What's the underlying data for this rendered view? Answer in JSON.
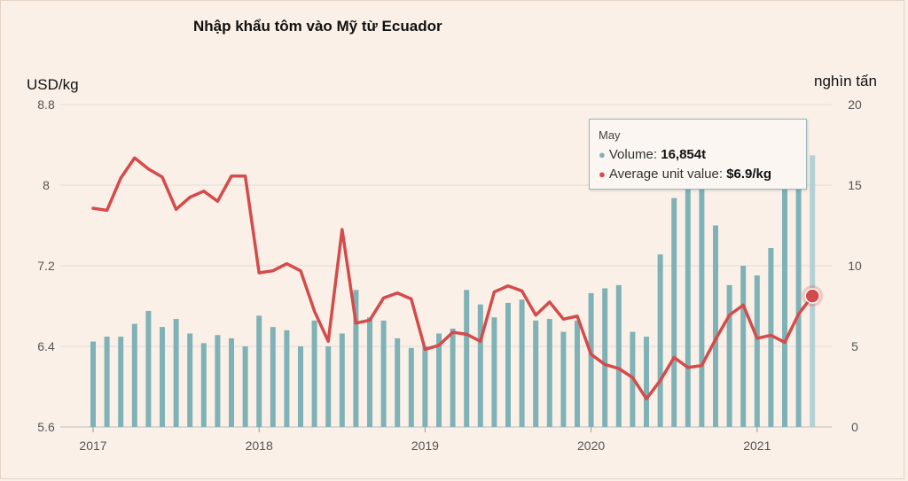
{
  "title": "Nhập khẩu tôm vào Mỹ từ Ecuador",
  "axis": {
    "left_title": "USD/kg",
    "right_title": "nghìn tấn"
  },
  "tooltip": {
    "month": "May",
    "volume_label": "Volume:",
    "volume_value": "16,854t",
    "price_label": "Average unit value:",
    "price_value": "$6.9/kg"
  },
  "colors": {
    "bar": "#7fb2b7",
    "bar_highlight": "#b3d1d4",
    "line": "#d44b4b",
    "grid": "#dddddd",
    "background": "#fbf0e7"
  },
  "chart_data": {
    "type": "bar",
    "x_ticks": [
      "2017",
      "2018",
      "2019",
      "2020",
      "2021"
    ],
    "left_axis": {
      "label": "USD/kg",
      "ylim": [
        5.6,
        8.8
      ],
      "ticks": [
        "5.6",
        "6.4",
        "7.2",
        "8",
        "8.8"
      ]
    },
    "right_axis": {
      "label": "nghìn tấn",
      "ylim": [
        0,
        20
      ],
      "ticks": [
        "0",
        "5",
        "10",
        "15",
        "20"
      ]
    },
    "grid": true,
    "categories": [
      "Jan 2017",
      "Feb 2017",
      "Mar 2017",
      "Apr 2017",
      "May 2017",
      "Jun 2017",
      "Jul 2017",
      "Aug 2017",
      "Sep 2017",
      "Oct 2017",
      "Nov 2017",
      "Dec 2017",
      "Jan 2018",
      "Feb 2018",
      "Mar 2018",
      "Apr 2018",
      "May 2018",
      "Jun 2018",
      "Jul 2018",
      "Aug 2018",
      "Sep 2018",
      "Oct 2018",
      "Nov 2018",
      "Dec 2018",
      "Jan 2019",
      "Feb 2019",
      "Mar 2019",
      "Apr 2019",
      "May 2019",
      "Jun 2019",
      "Jul 2019",
      "Aug 2019",
      "Sep 2019",
      "Oct 2019",
      "Nov 2019",
      "Dec 2019",
      "Jan 2020",
      "Feb 2020",
      "Mar 2020",
      "Apr 2020",
      "May 2020",
      "Jun 2020",
      "Jul 2020",
      "Aug 2020",
      "Sep 2020",
      "Oct 2020",
      "Nov 2020",
      "Dec 2020",
      "Jan 2021",
      "Feb 2021",
      "Mar 2021",
      "Apr 2021",
      "May 2021"
    ],
    "series": [
      {
        "name": "Volume",
        "type": "bar",
        "axis": "right",
        "values": [
          5.3,
          5.6,
          5.6,
          6.4,
          7.2,
          6.2,
          6.7,
          5.8,
          5.2,
          5.7,
          5.5,
          5.0,
          6.9,
          6.2,
          6.0,
          5.0,
          6.6,
          5.0,
          5.8,
          8.5,
          6.8,
          6.6,
          5.5,
          4.9,
          5.0,
          5.8,
          6.1,
          8.5,
          7.6,
          6.8,
          7.7,
          7.9,
          6.6,
          6.7,
          5.9,
          6.6,
          8.3,
          8.6,
          8.8,
          5.9,
          5.6,
          10.7,
          14.2,
          15.0,
          15.0,
          12.5,
          8.8,
          10.0,
          9.4,
          11.1,
          15.3,
          15.5,
          16.854
        ]
      },
      {
        "name": "Average unit value",
        "type": "line",
        "axis": "left",
        "values": [
          7.77,
          7.75,
          8.07,
          8.27,
          8.16,
          8.08,
          7.76,
          7.88,
          7.94,
          7.84,
          8.09,
          8.09,
          7.13,
          7.15,
          7.22,
          7.15,
          6.75,
          6.45,
          7.56,
          6.63,
          6.66,
          6.88,
          6.93,
          6.87,
          6.37,
          6.41,
          6.54,
          6.52,
          6.45,
          6.94,
          7.0,
          6.95,
          6.71,
          6.84,
          6.67,
          6.7,
          6.32,
          6.22,
          6.18,
          6.09,
          5.88,
          6.06,
          6.29,
          6.19,
          6.21,
          6.47,
          6.71,
          6.81,
          6.48,
          6.51,
          6.44,
          6.72,
          6.9
        ]
      }
    ]
  }
}
